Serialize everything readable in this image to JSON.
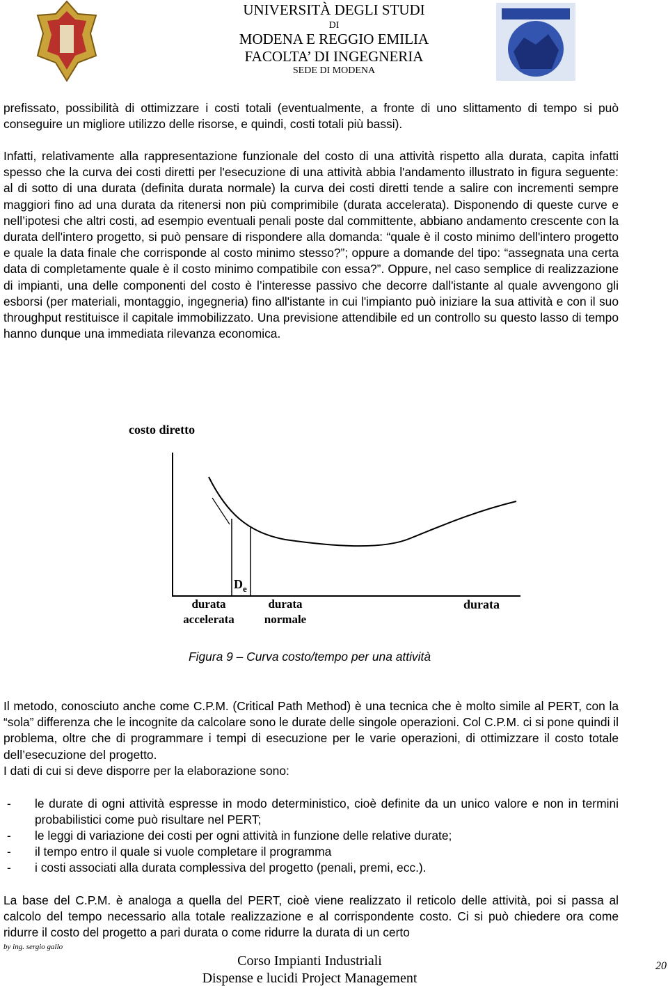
{
  "header": {
    "line1": "UNIVERSITÀ DEGLI STUDI",
    "line2": "DI",
    "line3": "MODENA E REGGIO EMILIA",
    "line4": "FACOLTA’ DI INGEGNERIA",
    "line5": "SEDE DI MODENA"
  },
  "paragraphs": [
    "prefissato, possibilità di ottimizzare i costi totali (eventualmente, a fronte di uno slittamento di tempo si può conseguire un migliore utilizzo delle risorse, e quindi, costi totali più bassi).",
    "Infatti, relativamente alla rappresentazione funzionale del costo di una attività rispetto alla durata, capita infatti spesso che la curva dei costi diretti per l'esecuzione di una attività abbia l'andamento illustrato in figura seguente: al di sotto di una durata (definita durata normale) la curva dei costi diretti tende a salire con incrementi sempre maggiori fino ad una durata da ritenersi non più comprimibile (durata accelerata). Disponendo di queste curve e nell’ipotesi che altri costi, ad esempio eventuali penali poste dal committente, abbiano andamento crescente con la durata dell'intero progetto, si può pensare di rispondere alla domanda: “quale è il costo minimo dell'intero progetto e quale la data finale che corrisponde al costo minimo stesso?”; oppure a domande del tipo: “assegnata una certa data di completamente quale è il costo minimo compatibile con essa?”. Oppure, nel caso semplice di realizzazione di impianti, una delle componenti del costo è l’interesse passivo che decorre dall'istante al quale avvengono gli esborsi (per materiali, montaggio, ingegneria) fino all'istante in cui l'impianto può iniziare la sua attività e con il suo throughput restituisce il capitale immobilizzato. Una previsione attendibile ed un controllo su questo lasso di tempo hanno dunque una immediata rilevanza economica."
  ],
  "figure": {
    "y_label": "costo diretto",
    "de_main": "D",
    "de_sub": "e",
    "x_label_accelerata": "durata accelerata",
    "x_label_normale": "durata normale",
    "x_label": "durata",
    "caption": "Figura 9 – Curva costo/tempo per una attività"
  },
  "paragraphs_after": [
    "Il metodo, conosciuto anche come C.P.M. (Critical Path Method) è una tecnica che è molto simile al PERT, con la “sola” differenza che le incognite da calcolare sono le durate delle singole operazioni. Col C.P.M. ci si pone quindi il problema, oltre che di programmare i tempi di esecuzione per le varie operazioni, di ottimizzare il costo totale dell’esecuzione del progetto.",
    "I dati di cui si deve disporre per la elaborazione sono:"
  ],
  "list": {
    "bullet": "-",
    "items": [
      "le durate di ogni attività espresse in modo deterministico, cioè definite da un unico valore e non in termini probabilistici come può risultare nel PERT;",
      "le leggi di variazione dei costi per ogni attività in funzione delle relative durate;",
      "il tempo entro il quale si vuole completare il programma",
      "i costi associati alla durata complessiva del progetto (penali, premi, ecc.)."
    ]
  },
  "last_paragraph": "La base del C.P.M. è analoga a quella del PERT, cioè viene realizzato il reticolo delle attività, poi si passa al calcolo del tempo necessario alla totale realizzazione e al corrispondente costo. Ci si può chiedere ora come ridurre il costo del progetto a pari durata o come ridurre la durata di un certo",
  "footer": {
    "author": "by ing. sergio gallo",
    "course": "Corso Impianti Industriali",
    "subtitle": "Dispense e lucidi Project Management",
    "page": "20"
  }
}
